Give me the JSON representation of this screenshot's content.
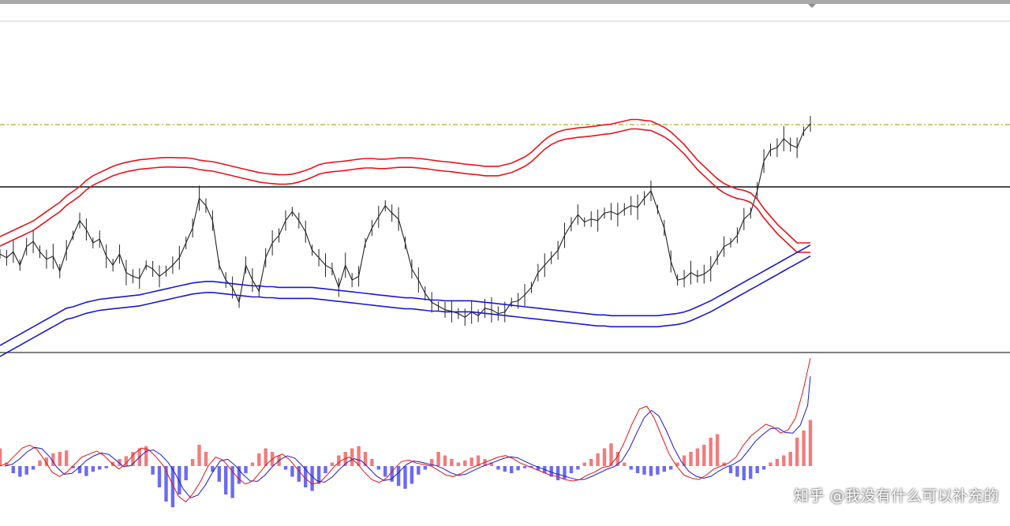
{
  "watermark": "知乎 @我没有什么可以补充的",
  "colors": {
    "candle": "#222222",
    "red_band": "#e0161b",
    "blue_band": "#1a1ac8",
    "hist_pos": "#f07c7c",
    "hist_neg": "#6b6bf0",
    "dash_line": "#9b8f00",
    "boundary": "#111111"
  },
  "chart_data": [
    {
      "type": "candlestick",
      "panel": "price",
      "series": [
        {
          "name": "",
          "kind": "close-path",
          "values": [
            315,
            320,
            312,
            330,
            305,
            298,
            312,
            322,
            318,
            338,
            310,
            290,
            270,
            282,
            300,
            295,
            318,
            330,
            315,
            340,
            345,
            348,
            330,
            335,
            345,
            338,
            330,
            320,
            300,
            280,
            240,
            250,
            270,
            330,
            350,
            360,
            380,
            330,
            350,
            365,
            320,
            300,
            290,
            270,
            258,
            270,
            285,
            310,
            320,
            330,
            335,
            360,
            330,
            350,
            345,
            300,
            280,
            265,
            250,
            260,
            268,
            300,
            335,
            350,
            368,
            380,
            385,
            390,
            392,
            395,
            400,
            393,
            398,
            388,
            390,
            395,
            393,
            380,
            378,
            370,
            360,
            340,
            330,
            320,
            310,
            290,
            275,
            262,
            272,
            268,
            270,
            260,
            258,
            262,
            255,
            250,
            252,
            240,
            230,
            255,
            280,
            325,
            350,
            348,
            340,
            345,
            342,
            335,
            320,
            305,
            300,
            290,
            268,
            260,
            230,
            190,
            175,
            172,
            160,
            168,
            172,
            150,
            140
          ]
        },
        {
          "name": "",
          "kind": "red-upper",
          "values": [
            20,
            30,
            40,
            50,
            60,
            70,
            85,
            100,
            115,
            130,
            150,
            165,
            180,
            200,
            215,
            225,
            235,
            245,
            252,
            258,
            262,
            266,
            268,
            270,
            272,
            273,
            273,
            272,
            272,
            270,
            265,
            262,
            260,
            255,
            250,
            245,
            240,
            235,
            230,
            225,
            222,
            220,
            218,
            218,
            220,
            225,
            232,
            240,
            250,
            255,
            258,
            260,
            262,
            265,
            268,
            270,
            270,
            268,
            268,
            270,
            272,
            272,
            272,
            270,
            268,
            265,
            262,
            260,
            258,
            255,
            252,
            250,
            248,
            245,
            245,
            245,
            250,
            255,
            265,
            275,
            290,
            310,
            330,
            345,
            355,
            362,
            365,
            368,
            370,
            372,
            375,
            378,
            380,
            385,
            390,
            395,
            395,
            392,
            390,
            380,
            370,
            355,
            335,
            315,
            290,
            265,
            245,
            225,
            205,
            190,
            180,
            172,
            168,
            160,
            140,
            110,
            85,
            60,
            40,
            20,
            0,
            0,
            0
          ]
        },
        {
          "name": "",
          "kind": "blue-upper",
          "values": [
            300,
            305,
            310,
            315,
            320,
            325,
            330,
            335,
            340,
            345,
            350,
            352,
            355,
            358,
            360,
            362,
            363,
            364,
            365,
            366,
            367,
            368,
            370,
            372,
            374,
            376,
            378,
            380,
            382,
            384,
            385,
            386,
            386,
            385,
            384,
            383,
            382,
            381,
            380,
            380,
            379,
            379,
            378,
            378,
            378,
            378,
            378,
            378,
            377,
            376,
            375,
            374,
            373,
            372,
            371,
            370,
            369,
            368,
            367,
            366,
            365,
            364,
            364,
            363,
            362,
            361,
            361,
            360,
            360,
            360,
            360,
            360,
            359,
            358,
            357,
            356,
            355,
            354,
            353,
            352,
            351,
            350,
            349,
            348,
            347,
            346,
            345,
            344,
            343,
            342,
            341,
            341,
            340,
            340,
            340,
            340,
            340,
            340,
            340,
            340,
            341,
            342,
            343,
            345,
            348,
            352,
            356,
            360,
            365,
            370,
            375,
            380,
            385,
            390,
            395,
            400,
            405,
            410,
            415,
            420,
            425,
            430,
            435
          ]
        }
      ]
    },
    {
      "type": "bar",
      "panel": "oscillator",
      "series": [
        {
          "name": "",
          "kind": "histogram",
          "values": [
            25,
            5,
            -10,
            -15,
            -12,
            -5,
            8,
            12,
            18,
            20,
            22,
            -3,
            -10,
            -14,
            -8,
            -5,
            -3,
            6,
            10,
            14,
            20,
            25,
            28,
            -12,
            -30,
            -50,
            -58,
            -40,
            -20,
            10,
            30,
            20,
            -8,
            -22,
            -40,
            -45,
            -25,
            -10,
            5,
            18,
            25,
            20,
            15,
            -5,
            -15,
            -22,
            -30,
            -35,
            -25,
            -10,
            5,
            15,
            20,
            25,
            28,
            20,
            10,
            -5,
            -15,
            -22,
            -28,
            -32,
            -25,
            -12,
            -5,
            10,
            20,
            15,
            10,
            5,
            8,
            12,
            15,
            10,
            5,
            -5,
            -8,
            -10,
            -6,
            -3,
            -2,
            -6,
            -10,
            -15,
            -20,
            -18,
            -10,
            -5,
            5,
            10,
            18,
            25,
            32,
            20,
            5,
            -5,
            -10,
            -12,
            -14,
            -12,
            -8,
            -5,
            5,
            15,
            20,
            25,
            30,
            40,
            45,
            5,
            -10,
            -15,
            -20,
            -18,
            -10,
            -5,
            5,
            10,
            15,
            20,
            40,
            50,
            65
          ]
        },
        {
          "name": "",
          "kind": "red-line",
          "values": [
            0.0,
            0.1,
            0.35,
            0.6,
            0.7,
            0.55,
            0.2,
            -0.2,
            -0.35,
            -0.2,
            0.05,
            0.3,
            0.4,
            0.5,
            0.35,
            0.1,
            -0.1,
            0.1,
            0.4,
            0.6,
            0.55,
            0.3,
            0.0,
            -0.5,
            -1.0,
            -1.2,
            -0.9,
            -0.5,
            0.0,
            0.3,
            0.2,
            -0.1,
            -0.4,
            -0.6,
            -0.5,
            -0.2,
            0.1,
            0.3,
            0.4,
            0.2,
            -0.1,
            -0.4,
            -0.6,
            -0.55,
            -0.3,
            0.0,
            0.2,
            0.3,
            0.1,
            -0.2,
            -0.45,
            -0.55,
            -0.4,
            -0.1,
            0.15,
            0.2,
            0.1,
            0.05,
            0.0,
            -0.15,
            -0.3,
            -0.35,
            -0.25,
            -0.1,
            0.0,
            0.1,
            0.2,
            0.3,
            0.35,
            0.25,
            0.1,
            0.0,
            -0.1,
            -0.2,
            -0.3,
            -0.35,
            -0.45,
            -0.5,
            -0.45,
            -0.3,
            -0.2,
            -0.05,
            0.0,
            0.3,
            0.8,
            1.4,
            1.9,
            2.0,
            1.6,
            1.0,
            0.4,
            0.0,
            -0.3,
            -0.4,
            -0.45,
            -0.3,
            -0.1,
            0.0,
            0.1,
            0.3,
            0.7,
            1.0,
            1.2,
            1.4,
            1.3,
            1.1,
            1.2,
            1.6,
            2.5,
            3.6
          ]
        }
      ]
    }
  ]
}
